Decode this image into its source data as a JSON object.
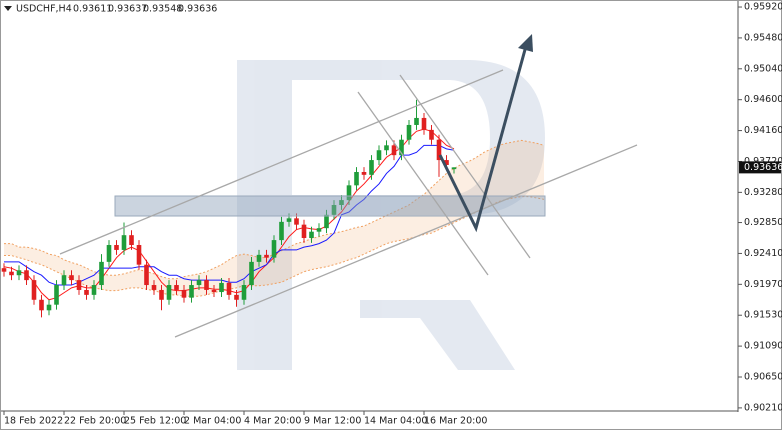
{
  "chart_data": {
    "type": "candlestick",
    "title": "USDCHF,H4",
    "categories": [
      "18 Feb 2022",
      null,
      null,
      null,
      null,
      null,
      null,
      null,
      "22 Feb 20:00",
      null,
      null,
      null,
      null,
      null,
      null,
      null,
      "25 Feb 12:00",
      null,
      null,
      null,
      null,
      null,
      null,
      null,
      "2 Mar 04:00",
      null,
      null,
      null,
      null,
      null,
      null,
      null,
      "4 Mar 20:00",
      null,
      null,
      null,
      null,
      null,
      null,
      null,
      "9 Mar 12:00",
      null,
      null,
      null,
      null,
      null,
      null,
      null,
      "14 Mar 04:00",
      null,
      null,
      null,
      null,
      null,
      null,
      null,
      "16 Mar 20:00",
      null,
      null,
      null,
      null
    ],
    "candles": {
      "open": [
        0.922,
        0.9215,
        0.921,
        0.9217,
        0.9203,
        0.9175,
        0.916,
        0.9168,
        0.9196,
        0.921,
        0.9203,
        0.9189,
        0.9182,
        0.9196,
        0.9229,
        0.9253,
        0.9246,
        0.9267,
        0.9253,
        0.9225,
        0.9196,
        0.9189,
        0.9175,
        0.9196,
        0.9189,
        0.9178,
        0.9196,
        0.9203,
        0.9189,
        0.9186,
        0.9199,
        0.9182,
        0.9175,
        0.9196,
        0.9229,
        0.9239,
        0.9235,
        0.926,
        0.9286,
        0.9291,
        0.9282,
        0.9263,
        0.9272,
        0.9277,
        0.9296,
        0.931,
        0.9317,
        0.9338,
        0.9357,
        0.9353,
        0.9374,
        0.9388,
        0.9395,
        0.9381,
        0.9403,
        0.9424,
        0.9434,
        0.9417,
        0.9403,
        0.9374,
        0.93611
      ],
      "high": [
        0.9227,
        0.9222,
        0.9224,
        0.9224,
        0.921,
        0.9182,
        0.9175,
        0.9203,
        0.9217,
        0.9217,
        0.921,
        0.9196,
        0.9203,
        0.924,
        0.926,
        0.926,
        0.9285,
        0.9274,
        0.926,
        0.9232,
        0.9203,
        0.9196,
        0.9203,
        0.9203,
        0.9196,
        0.9203,
        0.921,
        0.921,
        0.9196,
        0.9206,
        0.9206,
        0.9189,
        0.9203,
        0.9236,
        0.9246,
        0.9246,
        0.9267,
        0.9293,
        0.9298,
        0.9298,
        0.9289,
        0.9279,
        0.9284,
        0.9303,
        0.9317,
        0.9324,
        0.9345,
        0.9364,
        0.9364,
        0.9381,
        0.9395,
        0.9402,
        0.9402,
        0.941,
        0.9431,
        0.946,
        0.9441,
        0.9424,
        0.941,
        0.9381,
        0.93637
      ],
      "low": [
        0.9208,
        0.9203,
        0.9203,
        0.9196,
        0.9168,
        0.915,
        0.9153,
        0.9161,
        0.9189,
        0.9196,
        0.9182,
        0.9175,
        0.9175,
        0.9189,
        0.9222,
        0.9239,
        0.9239,
        0.9246,
        0.9218,
        0.9189,
        0.9182,
        0.916,
        0.9168,
        0.9182,
        0.9171,
        0.9171,
        0.9189,
        0.9182,
        0.9179,
        0.9179,
        0.9175,
        0.9165,
        0.9168,
        0.9189,
        0.9222,
        0.9228,
        0.9228,
        0.9253,
        0.9279,
        0.9275,
        0.9256,
        0.9256,
        0.9265,
        0.927,
        0.9289,
        0.9303,
        0.931,
        0.9331,
        0.9346,
        0.9346,
        0.9367,
        0.9381,
        0.9374,
        0.9374,
        0.9396,
        0.9417,
        0.941,
        0.9396,
        0.935,
        0.936,
        0.93548
      ],
      "close": [
        0.9215,
        0.921,
        0.9217,
        0.9203,
        0.9175,
        0.916,
        0.9168,
        0.9196,
        0.921,
        0.9203,
        0.9189,
        0.9182,
        0.9196,
        0.9229,
        0.9253,
        0.9246,
        0.9267,
        0.9253,
        0.9225,
        0.9196,
        0.9189,
        0.9175,
        0.9196,
        0.9189,
        0.9178,
        0.9196,
        0.9203,
        0.9189,
        0.9186,
        0.9199,
        0.9182,
        0.9175,
        0.9196,
        0.9229,
        0.9239,
        0.9235,
        0.926,
        0.9286,
        0.9291,
        0.9282,
        0.9263,
        0.9272,
        0.9277,
        0.9296,
        0.931,
        0.9317,
        0.9338,
        0.9357,
        0.9353,
        0.9374,
        0.9388,
        0.9395,
        0.9381,
        0.9403,
        0.9424,
        0.9434,
        0.9417,
        0.9403,
        0.9374,
        0.9367,
        0.93636
      ]
    },
    "up_color": "#1f9d3a",
    "down_color": "#e02020",
    "lines": [
      {
        "color": "#ff1a1a",
        "values": [
          0.9222,
          0.922,
          0.9215,
          0.9212,
          0.92,
          0.9185,
          0.9175,
          0.9178,
          0.9185,
          0.9192,
          0.9195,
          0.9192,
          0.9192,
          0.9205,
          0.922,
          0.9235,
          0.9245,
          0.925,
          0.9245,
          0.923,
          0.9215,
          0.92,
          0.919,
          0.9188,
          0.9188,
          0.919,
          0.9192,
          0.9192,
          0.919,
          0.919,
          0.9188,
          0.9185,
          0.9188,
          0.92,
          0.9215,
          0.9225,
          0.9235,
          0.925,
          0.9265,
          0.9275,
          0.9278,
          0.9276,
          0.9275,
          0.928,
          0.929,
          0.93,
          0.9315,
          0.933,
          0.934,
          0.9352,
          0.9365,
          0.9378,
          0.9385,
          0.9392,
          0.9405,
          0.9415,
          0.9418,
          0.9415,
          0.9405,
          0.9395,
          0.939
        ]
      },
      {
        "color": "#1a1aff",
        "values": [
          0.9229,
          0.9229,
          0.9229,
          0.9222,
          0.9215,
          0.921,
          0.92,
          0.9196,
          0.9196,
          0.9196,
          0.92,
          0.9205,
          0.921,
          0.922,
          0.922,
          0.922,
          0.922,
          0.922,
          0.9222,
          0.9222,
          0.9222,
          0.9215,
          0.921,
          0.921,
          0.9205,
          0.9203,
          0.9203,
          0.9203,
          0.9203,
          0.9203,
          0.92,
          0.92,
          0.9205,
          0.9215,
          0.922,
          0.9225,
          0.924,
          0.9246,
          0.9246,
          0.9246,
          0.925,
          0.9252,
          0.9255,
          0.926,
          0.927,
          0.9296,
          0.93,
          0.931,
          0.9318,
          0.933,
          0.934,
          0.9355,
          0.9365,
          0.9381,
          0.9381,
          0.9385,
          0.9395,
          0.9395,
          0.9395,
          0.939,
          0.9388
        ]
      }
    ],
    "cloud": {
      "color": "#f0a060",
      "span_a": [
        0.9255,
        0.9255,
        0.925,
        0.925,
        0.9248,
        0.9245,
        0.924,
        0.9238,
        0.9232,
        0.9228,
        0.9225,
        0.922,
        0.9215,
        0.9212,
        0.921,
        0.921,
        0.9212,
        0.9215,
        0.9218,
        0.9215,
        0.9212,
        0.9208,
        0.9205,
        0.9205,
        0.9208,
        0.921,
        0.9212,
        0.9215,
        0.922,
        0.9225,
        0.9232,
        0.9238,
        0.924,
        0.9238,
        0.9235,
        0.9235,
        0.924,
        0.9245,
        0.925,
        0.9255,
        0.9258,
        0.9262,
        0.9265,
        0.9268,
        0.927,
        0.9272,
        0.9275,
        0.9278,
        0.928,
        0.9285,
        0.929,
        0.9295,
        0.93,
        0.9305,
        0.931,
        0.9318,
        0.9325,
        0.9335,
        0.9345,
        0.9355,
        0.9362,
        0.9368,
        0.9372,
        0.9378,
        0.9385,
        0.939,
        0.9395,
        0.9398,
        0.94,
        0.9402,
        0.94,
        0.9398,
        0.9395
      ],
      "span_b": [
        0.9238,
        0.9238,
        0.9235,
        0.9232,
        0.9228,
        0.9225,
        0.922,
        0.9215,
        0.921,
        0.9205,
        0.92,
        0.9195,
        0.9192,
        0.919,
        0.9188,
        0.9188,
        0.919,
        0.9192,
        0.9192,
        0.919,
        0.9188,
        0.9185,
        0.9182,
        0.9182,
        0.918,
        0.918,
        0.918,
        0.9182,
        0.9185,
        0.9188,
        0.919,
        0.9192,
        0.9195,
        0.9195,
        0.9195,
        0.9196,
        0.9198,
        0.92,
        0.9205,
        0.921,
        0.9215,
        0.9218,
        0.922,
        0.9222,
        0.9225,
        0.9228,
        0.9232,
        0.9235,
        0.924,
        0.9245,
        0.925,
        0.9255,
        0.9258,
        0.926,
        0.9262,
        0.9265,
        0.9268,
        0.927,
        0.9275,
        0.928,
        0.9285,
        0.929,
        0.9295,
        0.93,
        0.9305,
        0.931,
        0.9315,
        0.9318,
        0.932,
        0.9322,
        0.9322,
        0.932,
        0.9318
      ]
    },
    "ylim": [
      0.9018,
      0.9602
    ],
    "yticks": [
      {
        "value": 0.9592,
        "label": "0.95920"
      },
      {
        "value": 0.9548,
        "label": "0.95480"
      },
      {
        "value": 0.9504,
        "label": "0.95040"
      },
      {
        "value": 0.946,
        "label": "0.94600"
      },
      {
        "value": 0.9416,
        "label": "0.94160"
      },
      {
        "value": 0.9372,
        "label": "0.93720"
      },
      {
        "value": 0.9328,
        "label": "0.93280"
      },
      {
        "value": 0.9285,
        "label": "0.92850"
      },
      {
        "value": 0.9241,
        "label": "0.92410"
      },
      {
        "value": 0.9197,
        "label": "0.91970"
      },
      {
        "value": 0.9153,
        "label": "0.91530"
      },
      {
        "value": 0.9109,
        "label": "0.91090"
      },
      {
        "value": 0.9065,
        "label": "0.90650"
      },
      {
        "value": 0.9021,
        "label": "0.90210"
      }
    ],
    "grid": false
  }
}
